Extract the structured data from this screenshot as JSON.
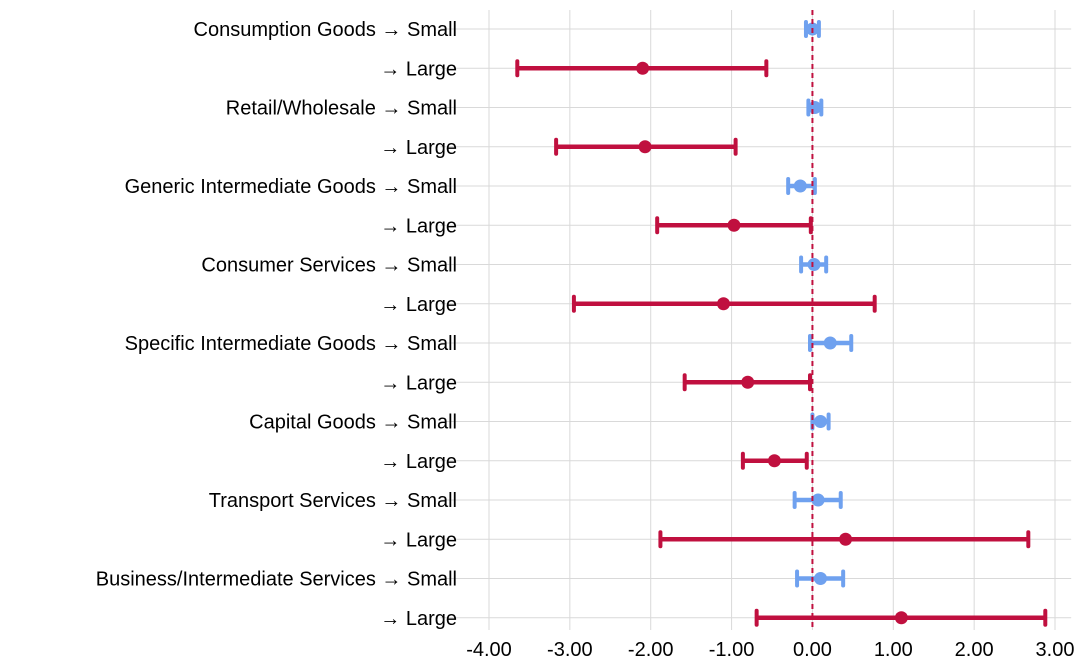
{
  "chart_data": {
    "type": "forest",
    "title": "",
    "xlabel": "",
    "ylabel": "",
    "xlim": [
      -4.6,
      3.2
    ],
    "x_ticks": [
      "-4.00",
      "-3.00",
      "-2.00",
      "-1.00",
      "0.00",
      "1.00",
      "2.00",
      "3.00"
    ],
    "x_tick_values": [
      -4,
      -3,
      -2,
      -1,
      0,
      1,
      2,
      3
    ],
    "reference_line": 0,
    "grid": true,
    "series_colors": {
      "Small": "#6fa1ef",
      "Large": "#c0103f"
    },
    "rows": [
      {
        "label": "Consumption Goods → Small",
        "group": "Small",
        "estimate": 0.0,
        "low": -0.08,
        "high": 0.08
      },
      {
        "label": "→ Large",
        "group": "Large",
        "estimate": -2.1,
        "low": -3.65,
        "high": -0.57
      },
      {
        "label": "Retail/Wholesale → Small",
        "group": "Small",
        "estimate": 0.03,
        "low": -0.05,
        "high": 0.11
      },
      {
        "label": "→ Large",
        "group": "Large",
        "estimate": -2.07,
        "low": -3.17,
        "high": -0.95
      },
      {
        "label": "Generic Intermediate Goods → Small",
        "group": "Small",
        "estimate": -0.15,
        "low": -0.3,
        "high": 0.03
      },
      {
        "label": "→ Large",
        "group": "Large",
        "estimate": -0.97,
        "low": -1.92,
        "high": -0.02
      },
      {
        "label": "Consumer Services → Small",
        "group": "Small",
        "estimate": 0.02,
        "low": -0.14,
        "high": 0.17
      },
      {
        "label": "→ Large",
        "group": "Large",
        "estimate": -1.1,
        "low": -2.95,
        "high": 0.77
      },
      {
        "label": "Specific Intermediate Goods → Small",
        "group": "Small",
        "estimate": 0.22,
        "low": -0.03,
        "high": 0.48
      },
      {
        "label": "→ Large",
        "group": "Large",
        "estimate": -0.8,
        "low": -1.58,
        "high": -0.03
      },
      {
        "label": "Capital Goods → Small",
        "group": "Small",
        "estimate": 0.1,
        "low": 0.0,
        "high": 0.2
      },
      {
        "label": "→ Large",
        "group": "Large",
        "estimate": -0.47,
        "low": -0.86,
        "high": -0.07
      },
      {
        "label": "Transport Services → Small",
        "group": "Small",
        "estimate": 0.07,
        "low": -0.22,
        "high": 0.35
      },
      {
        "label": "→ Large",
        "group": "Large",
        "estimate": 0.41,
        "low": -1.88,
        "high": 2.67
      },
      {
        "label": "Business/Intermediate Services → Small",
        "group": "Small",
        "estimate": 0.1,
        "low": -0.19,
        "high": 0.38
      },
      {
        "label": "→ Large",
        "group": "Large",
        "estimate": 1.1,
        "low": -0.69,
        "high": 2.88
      }
    ]
  }
}
